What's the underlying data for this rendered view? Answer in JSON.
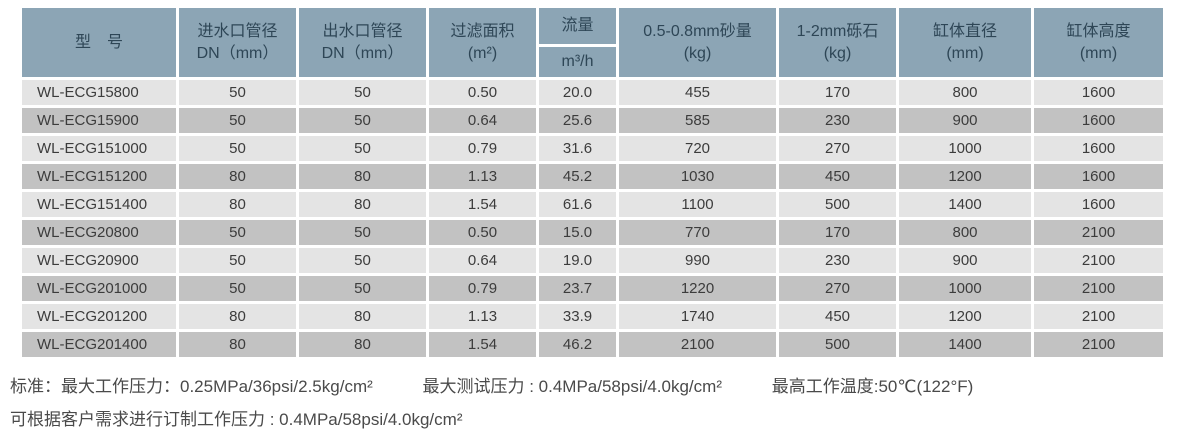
{
  "table": {
    "columns": [
      {
        "id": "model",
        "line1": "型　号",
        "line2": ""
      },
      {
        "id": "inlet",
        "line1": "进水口管径",
        "line2": "DN（mm）"
      },
      {
        "id": "outlet",
        "line1": "出水口管径",
        "line2": "DN（mm）"
      },
      {
        "id": "filter_area",
        "line1": "过滤面积",
        "line2": "(m²)"
      },
      {
        "id": "flow",
        "line1": "流量",
        "line2": "m³/h",
        "split": true
      },
      {
        "id": "sand",
        "line1": "0.5-0.8mm砂量",
        "line2": "(kg)"
      },
      {
        "id": "gravel",
        "line1": "1-2mm砾石",
        "line2": "(kg)"
      },
      {
        "id": "diameter",
        "line1": "缸体直径",
        "line2": "(mm)"
      },
      {
        "id": "height",
        "line1": "缸体高度",
        "line2": "(mm)"
      }
    ],
    "rows": [
      [
        "WL-ECG15800",
        "50",
        "50",
        "0.50",
        "20.0",
        "455",
        "170",
        "800",
        "1600"
      ],
      [
        "WL-ECG15900",
        "50",
        "50",
        "0.64",
        "25.6",
        "585",
        "230",
        "900",
        "1600"
      ],
      [
        "WL-ECG151000",
        "50",
        "50",
        "0.79",
        "31.6",
        "720",
        "270",
        "1000",
        "1600"
      ],
      [
        "WL-ECG151200",
        "80",
        "80",
        "1.13",
        "45.2",
        "1030",
        "450",
        "1200",
        "1600"
      ],
      [
        "WL-ECG151400",
        "80",
        "80",
        "1.54",
        "61.6",
        "1100",
        "500",
        "1400",
        "1600"
      ],
      [
        "WL-ECG20800",
        "50",
        "50",
        "0.50",
        "15.0",
        "770",
        "170",
        "800",
        "2100"
      ],
      [
        "WL-ECG20900",
        "50",
        "50",
        "0.64",
        "19.0",
        "990",
        "230",
        "900",
        "2100"
      ],
      [
        "WL-ECG201000",
        "50",
        "50",
        "0.79",
        "23.7",
        "1220",
        "270",
        "1000",
        "2100"
      ],
      [
        "WL-ECG201200",
        "80",
        "80",
        "1.13",
        "33.9",
        "1740",
        "450",
        "1200",
        "2100"
      ],
      [
        "WL-ECG201400",
        "80",
        "80",
        "1.54",
        "46.2",
        "2100",
        "500",
        "1400",
        "2100"
      ]
    ]
  },
  "footer": {
    "standard": "标准：最大工作压力：0.25MPa/36psi/2.5kg/cm²",
    "test": "最大测试压力 : 0.4MPa/58psi/4.0kg/cm²",
    "temperature": "最高工作温度:50℃(122°F)",
    "custom": "可根据客户需求进行订制工作压力 : 0.4MPa/58psi/4.0kg/cm²"
  },
  "colors": {
    "header_bg": "#8ca5b5",
    "header_text": "#2e4656",
    "row_light": "#e4e4e4",
    "row_dark": "#c2c2c2",
    "cell_text": "#3c3c3c",
    "footer_text": "#4a4a4a"
  }
}
